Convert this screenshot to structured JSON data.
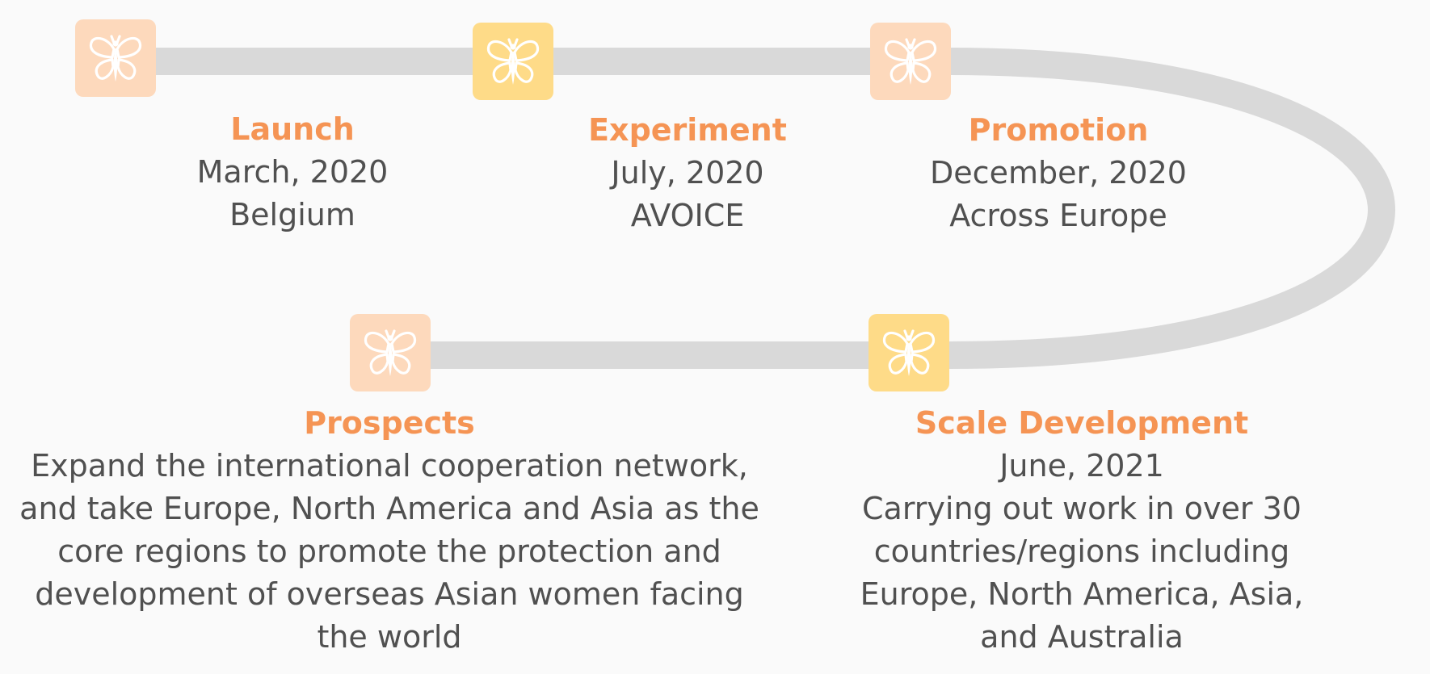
{
  "colors": {
    "track": "#d9d9d9",
    "node_peach": "#fdd9bc",
    "node_yellow": "#fedb88",
    "title": "#f59454",
    "text": "#505050"
  },
  "milestones": [
    {
      "icon": "butterfly-icon",
      "color": "peach",
      "title": "Launch",
      "lines": [
        "March, 2020",
        "Belgium"
      ]
    },
    {
      "icon": "butterfly-icon",
      "color": "yellow",
      "title": "Experiment",
      "lines": [
        "July, 2020",
        "AVOICE"
      ]
    },
    {
      "icon": "butterfly-icon",
      "color": "peach",
      "title": "Promotion",
      "lines": [
        "December, 2020",
        "Across Europe"
      ]
    },
    {
      "icon": "butterfly-icon",
      "color": "yellow",
      "title": "Scale Development",
      "lines": [
        "June, 2021",
        "Carrying out work in over 30",
        "countries/regions including",
        "Europe, North America, Asia,",
        "and Australia"
      ]
    },
    {
      "icon": "butterfly-icon",
      "color": "peach",
      "title": "Prospects",
      "lines": [
        "Expand the international cooperation network,",
        "and take Europe, North America and Asia as the",
        "core regions to promote the protection and",
        "development of overseas Asian women facing",
        "the world"
      ]
    }
  ]
}
